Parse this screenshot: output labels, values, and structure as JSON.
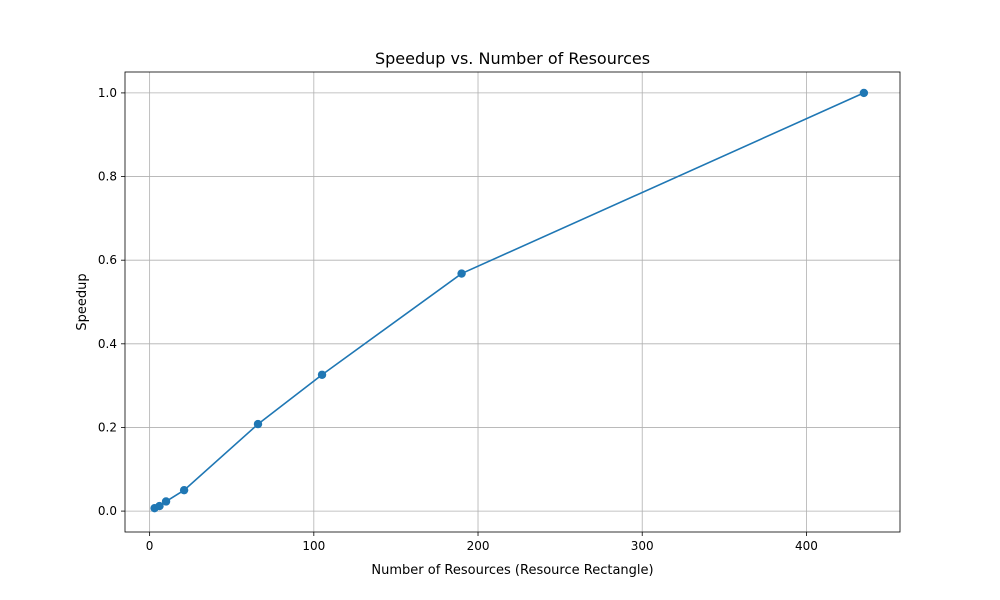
{
  "chart_data": {
    "type": "line",
    "title": "Speedup vs. Number of Resources",
    "xlabel": "Number of Resources (Resource Rectangle)",
    "ylabel": "Speedup",
    "xlim": [
      -15,
      457
    ],
    "ylim": [
      -0.05,
      1.05
    ],
    "x_ticks": [
      0,
      100,
      200,
      300,
      400
    ],
    "x_tick_labels": [
      "0",
      "100",
      "200",
      "300",
      "400"
    ],
    "y_ticks": [
      0.0,
      0.2,
      0.4,
      0.6,
      0.8,
      1.0
    ],
    "y_tick_labels": [
      "0.0",
      "0.2",
      "0.4",
      "0.6",
      "0.8",
      "1.0"
    ],
    "grid": true,
    "legend": null,
    "series": [
      {
        "color": "#1f77b4",
        "marker": "circle",
        "x": [
          3,
          6,
          10,
          21,
          66,
          105,
          190,
          435
        ],
        "y": [
          0.007,
          0.012,
          0.023,
          0.05,
          0.208,
          0.326,
          0.568,
          1.0
        ]
      }
    ]
  }
}
